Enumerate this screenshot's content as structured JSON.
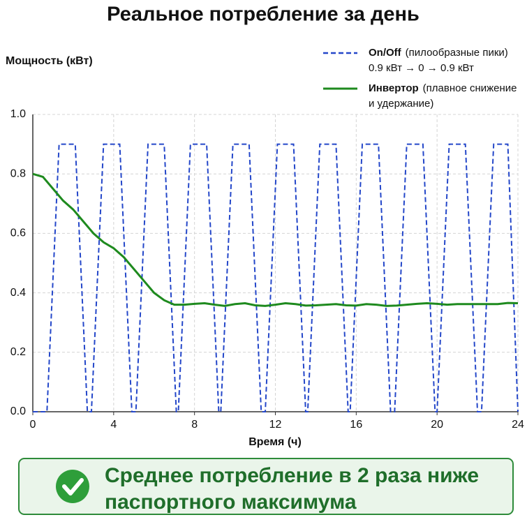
{
  "chart_data": {
    "type": "line",
    "title": "Реальное потребление за день",
    "y_label": "Мощность (кВт)",
    "x_label": "Время (ч)",
    "xlim": [
      0,
      24
    ],
    "xticks": [
      0,
      4,
      8,
      12,
      16,
      20,
      24
    ],
    "ylim": [
      0,
      1
    ],
    "yticks": [
      {
        "value": 0,
        "label": "0.0"
      },
      0.2,
      0.4,
      0.6,
      0.8,
      {
        "value": 1,
        "label": "1.0"
      }
    ],
    "grid": true,
    "series": [
      {
        "name": "On/Off",
        "legend_note": [
          "(пилообразные пики)",
          "0.9 кВт → 0 → 0.9 кВт"
        ],
        "color": "#2447c9",
        "dashed": true,
        "x": [
          0,
          0.7,
          1.3,
          2.1,
          2.7,
          2.9,
          3.5,
          4.3,
          4.9,
          5.1,
          5.7,
          6.5,
          7.1,
          7.2,
          7.8,
          8.6,
          9.2,
          9.3,
          9.9,
          10.7,
          11.3,
          11.5,
          12.1,
          12.9,
          13.5,
          13.6,
          14.2,
          15.0,
          15.6,
          15.7,
          16.3,
          17.1,
          17.7,
          17.9,
          18.5,
          19.3,
          19.9,
          20.0,
          20.6,
          21.4,
          22.0,
          22.2,
          22.8,
          23.5,
          24
        ],
        "values": [
          0,
          0,
          0.9,
          0.9,
          0,
          0,
          0.9,
          0.9,
          0,
          0,
          0.9,
          0.9,
          0,
          0,
          0.9,
          0.9,
          0,
          0,
          0.9,
          0.9,
          0,
          0,
          0.9,
          0.9,
          0,
          0,
          0.9,
          0.9,
          0,
          0,
          0.9,
          0.9,
          0,
          0,
          0.9,
          0.9,
          0,
          0,
          0.9,
          0.9,
          0,
          0,
          0.9,
          0.9,
          0
        ]
      },
      {
        "name": "Инвертор",
        "legend_note": [
          "(плавное снижение",
          "и удержание)"
        ],
        "color": "#1e8a1e",
        "dashed": false,
        "x": [
          0,
          0.5,
          1,
          1.5,
          2,
          2.5,
          3,
          3.5,
          4,
          4.5,
          5,
          5.5,
          6,
          6.5,
          7,
          7.5,
          8,
          8.5,
          9,
          9.5,
          10,
          10.5,
          11,
          11.5,
          12,
          12.5,
          13,
          13.5,
          14,
          14.5,
          15,
          15.5,
          16,
          16.5,
          17,
          17.5,
          18,
          18.5,
          19,
          19.5,
          20,
          20.5,
          21,
          21.5,
          22,
          22.5,
          23,
          23.5,
          24
        ],
        "values": [
          0.8,
          0.79,
          0.75,
          0.71,
          0.68,
          0.64,
          0.6,
          0.57,
          0.55,
          0.52,
          0.48,
          0.44,
          0.4,
          0.375,
          0.36,
          0.36,
          0.363,
          0.365,
          0.36,
          0.356,
          0.362,
          0.365,
          0.358,
          0.356,
          0.36,
          0.365,
          0.362,
          0.357,
          0.358,
          0.36,
          0.362,
          0.358,
          0.357,
          0.362,
          0.36,
          0.356,
          0.357,
          0.36,
          0.363,
          0.365,
          0.363,
          0.36,
          0.362,
          0.362,
          0.362,
          0.362,
          0.362,
          0.366,
          0.365
        ]
      }
    ],
    "callout": {
      "lines": [
        "Среднее потребление в 2 раза ниже",
        "паспортного максимума"
      ]
    }
  }
}
